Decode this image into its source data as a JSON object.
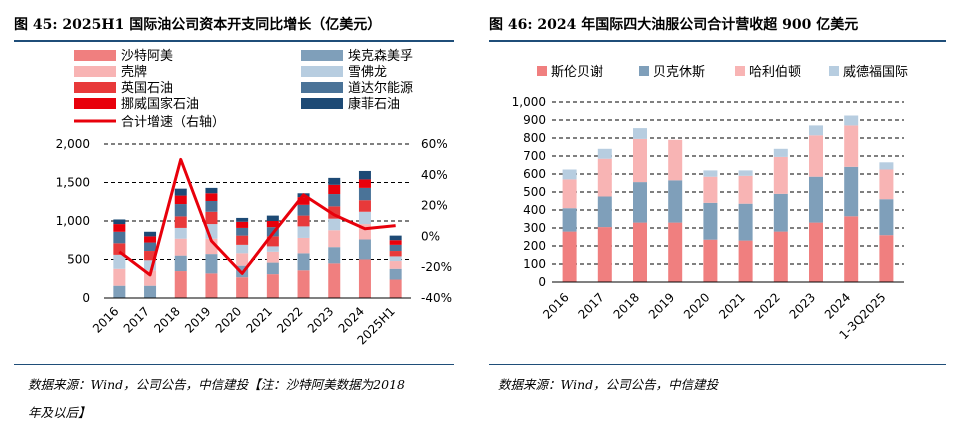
{
  "left": {
    "title": "图 45: 2025H1 国际油公司资本开支同比增长（亿美元）",
    "source_line1": "数据来源：Wind，公司公告，中信建投【注：沙特阿美数据为2018",
    "source_line2": "年及以后】"
  },
  "right": {
    "title": "图 46: 2024 年国际四大油服公司合计营收超 900 亿美元",
    "source_line1": "数据来源：Wind，公司公告，中信建投"
  },
  "chart_data": [
    {
      "type": "bar",
      "stacked": true,
      "categories": [
        "2016",
        "2017",
        "2018",
        "2019",
        "2020",
        "2021",
        "2022",
        "2023",
        "2024",
        "2025H1"
      ],
      "ylim": [
        0,
        2000
      ],
      "yticks": [
        0,
        500,
        1000,
        1500,
        2000
      ],
      "ytick_labels": [
        "0",
        "500",
        "1,000",
        "1,500",
        "2,000"
      ],
      "y2lim": [
        -40,
        60
      ],
      "y2ticks": [
        -40,
        -20,
        0,
        20,
        40,
        60
      ],
      "y2tick_labels": [
        "-40%",
        "-20%",
        "0%",
        "20%",
        "40%",
        "60%"
      ],
      "grid": "dashed",
      "legend": "top",
      "series": [
        {
          "name": "沙特阿美",
          "color": "#f07f7f",
          "values": [
            0,
            0,
            350,
            320,
            270,
            310,
            360,
            450,
            500,
            240
          ]
        },
        {
          "name": "埃克森美孚",
          "color": "#7f9fba",
          "values": [
            160,
            160,
            200,
            250,
            150,
            150,
            220,
            210,
            260,
            140
          ]
        },
        {
          "name": "壳牌",
          "color": "#f8b4b4",
          "values": [
            220,
            200,
            220,
            200,
            160,
            140,
            200,
            220,
            200,
            100
          ]
        },
        {
          "name": "雪佛龙",
          "color": "#b7cde0",
          "values": [
            180,
            130,
            140,
            190,
            110,
            70,
            150,
            150,
            160,
            60
          ]
        },
        {
          "name": "英国石油",
          "color": "#e8393a",
          "values": [
            150,
            120,
            150,
            160,
            120,
            130,
            140,
            160,
            150,
            70
          ]
        },
        {
          "name": "道达尔能源",
          "color": "#4a7398",
          "values": [
            150,
            110,
            160,
            140,
            100,
            120,
            140,
            160,
            160,
            80
          ]
        },
        {
          "name": "挪威国家石油",
          "color": "#e8000b",
          "values": [
            100,
            80,
            110,
            100,
            80,
            80,
            100,
            120,
            110,
            60
          ]
        },
        {
          "name": "康菲石油",
          "color": "#1d4a75",
          "values": [
            60,
            60,
            90,
            70,
            50,
            70,
            50,
            90,
            110,
            60
          ]
        }
      ],
      "line": {
        "name": "合计增速（右轴）",
        "color": "#e8000b",
        "axis": "right",
        "values": [
          -10,
          -25,
          50,
          -3,
          -24,
          2,
          27,
          14,
          5,
          7
        ]
      }
    },
    {
      "type": "bar",
      "stacked": true,
      "categories": [
        "2016",
        "2017",
        "2018",
        "2019",
        "2020",
        "2021",
        "2022",
        "2023",
        "2024",
        "1-3Q2025"
      ],
      "ylim": [
        0,
        1000
      ],
      "yticks": [
        0,
        100,
        200,
        300,
        400,
        500,
        600,
        700,
        800,
        900,
        1000
      ],
      "ytick_labels": [
        "0",
        "100",
        "200",
        "300",
        "400",
        "500",
        "600",
        "700",
        "800",
        "900",
        "1,000"
      ],
      "grid": "dashed",
      "legend": "top",
      "series": [
        {
          "name": "斯伦贝谢",
          "color": "#f07f7f",
          "values": [
            280,
            305,
            330,
            330,
            235,
            230,
            280,
            330,
            365,
            260
          ]
        },
        {
          "name": "贝克休斯",
          "color": "#7f9fba",
          "values": [
            130,
            170,
            225,
            235,
            205,
            205,
            210,
            255,
            275,
            200
          ]
        },
        {
          "name": "哈利伯顿",
          "color": "#f8b4b4",
          "values": [
            160,
            210,
            240,
            225,
            145,
            155,
            205,
            230,
            230,
            165
          ]
        },
        {
          "name": "威德福国际",
          "color": "#b7cde0",
          "values": [
            55,
            55,
            60,
            0,
            35,
            30,
            45,
            55,
            55,
            40
          ]
        }
      ]
    }
  ]
}
